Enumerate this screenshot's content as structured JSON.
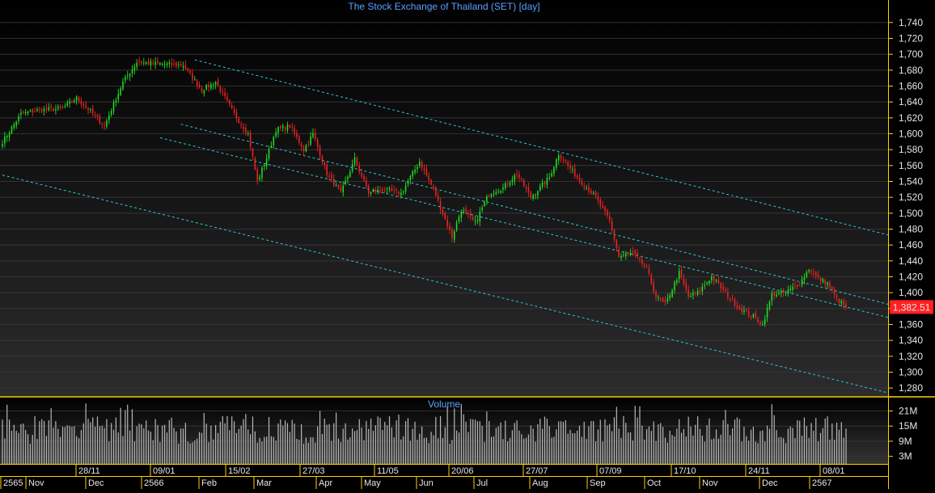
{
  "chart_data": {
    "type": "candlestick",
    "title": "The Stock Exchange of Thailand (SET) [day]",
    "price_axis": {
      "ylim": [
        1270,
        1750
      ],
      "ticks": [
        1280,
        1300,
        1320,
        1340,
        1360,
        1380,
        1400,
        1420,
        1440,
        1460,
        1480,
        1500,
        1520,
        1540,
        1560,
        1580,
        1600,
        1620,
        1640,
        1660,
        1680,
        1700,
        1720,
        1740
      ],
      "tick_labels": [
        "1,280",
        "1,300",
        "1,320",
        "1,340",
        "1,360",
        "1,380",
        "1,400",
        "1,420",
        "1,440",
        "1,460",
        "1,480",
        "1,500",
        "1,520",
        "1,540",
        "1,560",
        "1,580",
        "1,600",
        "1,620",
        "1,640",
        "1,660",
        "1,680",
        "1,700",
        "1,720",
        "1,740"
      ]
    },
    "last_price": 1382.51,
    "last_price_label": "1,382.51",
    "volume_panel": {
      "title": "Volume",
      "ticks": [
        3,
        9,
        15,
        21
      ],
      "tick_labels": [
        "3M",
        "9M",
        "15M",
        "21M"
      ],
      "ylim": [
        0,
        25
      ]
    },
    "date_labels": [
      "28/11",
      "09/01",
      "15/02",
      "27/03",
      "11/05",
      "20/06",
      "27/07",
      "07/09",
      "17/10",
      "24/11",
      "08/01"
    ],
    "month_labels": [
      "2565",
      "Nov",
      "Dec",
      "2566",
      "Feb",
      "Mar",
      "Apr",
      "May",
      "Jun",
      "Jul",
      "Aug",
      "Sep",
      "Oct",
      "Nov",
      "Dec",
      "2567"
    ],
    "close_keypoints": [
      {
        "bar": 0,
        "close": 1590
      },
      {
        "bar": 8,
        "close": 1625
      },
      {
        "bar": 16,
        "close": 1630
      },
      {
        "bar": 26,
        "close": 1632
      },
      {
        "bar": 32,
        "close": 1645
      },
      {
        "bar": 38,
        "close": 1628
      },
      {
        "bar": 44,
        "close": 1610
      },
      {
        "bar": 52,
        "close": 1665
      },
      {
        "bar": 58,
        "close": 1690
      },
      {
        "bar": 68,
        "close": 1688
      },
      {
        "bar": 78,
        "close": 1686
      },
      {
        "bar": 86,
        "close": 1655
      },
      {
        "bar": 92,
        "close": 1665
      },
      {
        "bar": 100,
        "close": 1625
      },
      {
        "bar": 106,
        "close": 1600
      },
      {
        "bar": 110,
        "close": 1540
      },
      {
        "bar": 114,
        "close": 1570
      },
      {
        "bar": 118,
        "close": 1605
      },
      {
        "bar": 124,
        "close": 1610
      },
      {
        "bar": 130,
        "close": 1580
      },
      {
        "bar": 134,
        "close": 1600
      },
      {
        "bar": 140,
        "close": 1550
      },
      {
        "bar": 146,
        "close": 1525
      },
      {
        "bar": 152,
        "close": 1568
      },
      {
        "bar": 158,
        "close": 1525
      },
      {
        "bar": 164,
        "close": 1530
      },
      {
        "bar": 172,
        "close": 1525
      },
      {
        "bar": 180,
        "close": 1565
      },
      {
        "bar": 186,
        "close": 1530
      },
      {
        "bar": 190,
        "close": 1500
      },
      {
        "bar": 194,
        "close": 1470
      },
      {
        "bar": 198,
        "close": 1505
      },
      {
        "bar": 204,
        "close": 1488
      },
      {
        "bar": 210,
        "close": 1525
      },
      {
        "bar": 216,
        "close": 1532
      },
      {
        "bar": 222,
        "close": 1550
      },
      {
        "bar": 228,
        "close": 1520
      },
      {
        "bar": 236,
        "close": 1545
      },
      {
        "bar": 240,
        "close": 1575
      },
      {
        "bar": 248,
        "close": 1545
      },
      {
        "bar": 256,
        "close": 1520
      },
      {
        "bar": 262,
        "close": 1490
      },
      {
        "bar": 266,
        "close": 1445
      },
      {
        "bar": 272,
        "close": 1450
      },
      {
        "bar": 278,
        "close": 1430
      },
      {
        "bar": 282,
        "close": 1395
      },
      {
        "bar": 286,
        "close": 1385
      },
      {
        "bar": 292,
        "close": 1425
      },
      {
        "bar": 296,
        "close": 1395
      },
      {
        "bar": 300,
        "close": 1400
      },
      {
        "bar": 306,
        "close": 1420
      },
      {
        "bar": 312,
        "close": 1400
      },
      {
        "bar": 318,
        "close": 1380
      },
      {
        "bar": 324,
        "close": 1370
      },
      {
        "bar": 328,
        "close": 1360
      },
      {
        "bar": 332,
        "close": 1398
      },
      {
        "bar": 338,
        "close": 1400
      },
      {
        "bar": 344,
        "close": 1412
      },
      {
        "bar": 348,
        "close": 1430
      },
      {
        "bar": 352,
        "close": 1418
      },
      {
        "bar": 356,
        "close": 1412
      },
      {
        "bar": 360,
        "close": 1392
      },
      {
        "bar": 364,
        "close": 1382.51
      }
    ],
    "trend_lines": [
      {
        "points": [
          {
            "bar": 83,
            "value": 1693
          },
          {
            "bar": 364,
            "value": 1486
          }
        ]
      },
      {
        "points": [
          {
            "bar": 77,
            "value": 1612
          },
          {
            "bar": 364,
            "value": 1399
          }
        ]
      },
      {
        "points": [
          {
            "bar": 68,
            "value": 1595
          },
          {
            "bar": 364,
            "value": 1382
          }
        ]
      },
      {
        "points": [
          {
            "bar": 0,
            "value": 1548
          },
          {
            "bar": 364,
            "value": 1287
          }
        ]
      }
    ]
  }
}
